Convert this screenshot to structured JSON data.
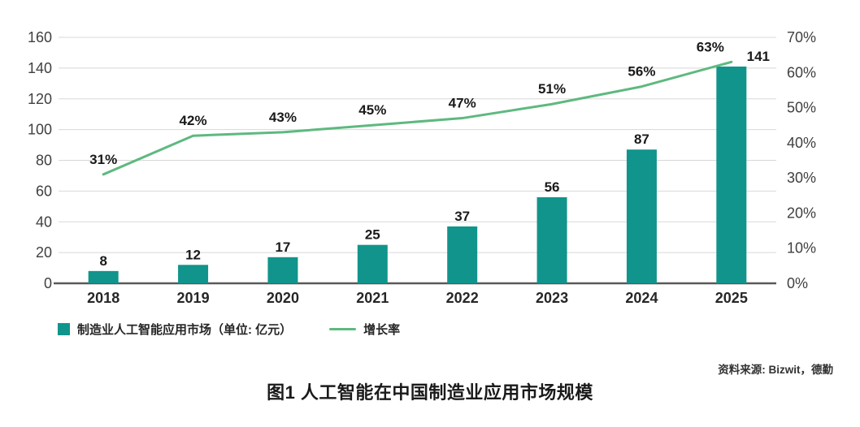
{
  "chart_data": {
    "type": "bar",
    "subtype": "bar-line-combo",
    "title": "图1 人工智能在中国制造业应用市场规模",
    "categories": [
      "2018",
      "2019",
      "2020",
      "2021",
      "2022",
      "2023",
      "2024",
      "2025"
    ],
    "series": [
      {
        "name": "制造业人工智能应用市场（单位: 亿元）",
        "type": "bar",
        "axis": "left",
        "values": [
          8,
          12,
          17,
          25,
          37,
          56,
          87,
          141
        ],
        "color": "#11948b"
      },
      {
        "name": "增长率",
        "type": "line",
        "axis": "right",
        "values_percent": [
          31,
          42,
          43,
          45,
          47,
          51,
          56,
          63
        ],
        "labels": [
          "31%",
          "42%",
          "43%",
          "45%",
          "47%",
          "51%",
          "56%",
          "63%"
        ],
        "color": "#5eb97f"
      }
    ],
    "left_axis": {
      "min": 0,
      "max": 160,
      "step": 20,
      "ticks": [
        "0",
        "20",
        "40",
        "60",
        "80",
        "100",
        "120",
        "140",
        "160"
      ]
    },
    "right_axis": {
      "min": 0,
      "max": 70,
      "step": 10,
      "ticks": [
        "0%",
        "10%",
        "20%",
        "30%",
        "40%",
        "50%",
        "60%",
        "70%"
      ]
    },
    "grid": "horizontal",
    "legend_position": "bottom-left"
  },
  "source": "资料来源: Bizwit，德勤",
  "caption": "图1 人工智能在中国制造业应用市场规模"
}
